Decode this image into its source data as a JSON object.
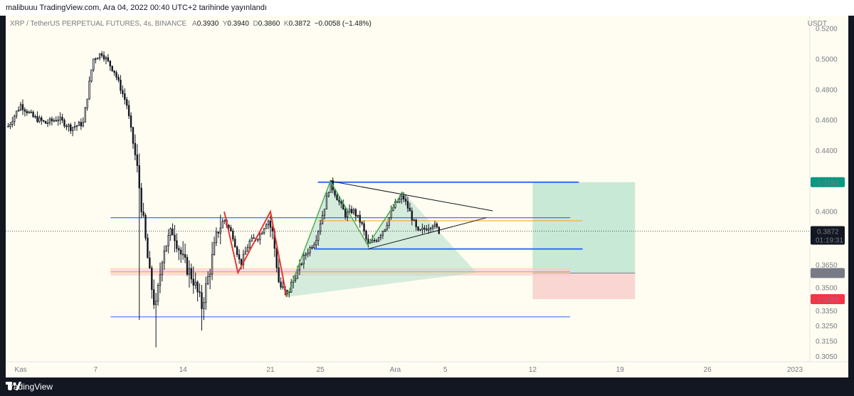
{
  "header": {
    "title": "malibuuu TradingView.com, Ara 04, 2022 00:40 UTC+2 tarihinde yayınlandı"
  },
  "legend": {
    "symbol": "XRP / TetherUS PERPETUAL FUTURES, 4s, BINANCE",
    "o_key": "A",
    "o_val": "0.3930",
    "h_key": "Y",
    "h_val": "0.3940",
    "l_key": "D",
    "l_val": "0.3860",
    "c_key": "K",
    "c_val": "0.3872",
    "change": "−0.0058 (−1.48%)"
  },
  "axis": {
    "unit": "USDT"
  },
  "footer": {
    "brand": "TradingView"
  },
  "colors": {
    "up": "#131722",
    "down": "#131722",
    "blue_line": "#2962ff",
    "orange_line": "#f7a600",
    "pattern_green": "#4caf50",
    "pattern_red": "#e53935",
    "target_fill": "#b2dfcc",
    "stop_fill": "#f8c8c8",
    "tag_green": "#089981",
    "tag_red": "#f23645",
    "tag_gray": "#787b86"
  },
  "chart_data": {
    "type": "candlestick",
    "ylim": [
      0.3015,
      0.5285
    ],
    "y_ticks": [
      0.52,
      0.5,
      0.48,
      0.46,
      0.44,
      0.4,
      0.365,
      0.35,
      0.335,
      0.325,
      0.315,
      0.305
    ],
    "y_tick_labels": [
      "0.5200",
      "0.5000",
      "0.4800",
      "0.4600",
      "0.4400",
      "0.4000",
      "0.3650",
      "0.3500",
      "0.3350",
      "0.3250",
      "0.3150",
      "0.3050"
    ],
    "x_ticks": [
      {
        "label": "Kas",
        "day": 1
      },
      {
        "label": "7",
        "day": 7
      },
      {
        "label": "14",
        "day": 14
      },
      {
        "label": "21",
        "day": 21
      },
      {
        "label": "25",
        "day": 25
      },
      {
        "label": "Ara",
        "day": 31
      },
      {
        "label": "5",
        "day": 35
      },
      {
        "label": "12",
        "day": 42
      },
      {
        "label": "19",
        "day": 49
      },
      {
        "label": "26",
        "day": 56
      },
      {
        "label": "2023",
        "day": 63
      }
    ],
    "x_range_days": [
      -0.2,
      64.2
    ],
    "current_price": {
      "value": 0.3872,
      "label": "0.3872",
      "countdown": "01:19:31"
    },
    "price_tags": [
      {
        "value": 0.4193,
        "label": "0.4193",
        "color": "#089981"
      },
      {
        "value": 0.3597,
        "label": "0.3597",
        "color": "#787b86"
      },
      {
        "value": 0.3426,
        "label": "0.3426",
        "color": "#f23645"
      }
    ],
    "anchors": [
      {
        "day": 0.0,
        "price": 0.456
      },
      {
        "day": 1.0,
        "price": 0.47
      },
      {
        "day": 2.0,
        "price": 0.462
      },
      {
        "day": 3.0,
        "price": 0.458
      },
      {
        "day": 4.0,
        "price": 0.461
      },
      {
        "day": 5.0,
        "price": 0.455
      },
      {
        "day": 6.0,
        "price": 0.458
      },
      {
        "day": 6.8,
        "price": 0.5
      },
      {
        "day": 7.5,
        "price": 0.504
      },
      {
        "day": 8.5,
        "price": 0.492
      },
      {
        "day": 9.5,
        "price": 0.47
      },
      {
        "day": 10.3,
        "price": 0.43
      },
      {
        "day": 10.8,
        "price": 0.395
      },
      {
        "day": 11.3,
        "price": 0.36
      },
      {
        "day": 11.8,
        "price": 0.335
      },
      {
        "day": 12.4,
        "price": 0.375
      },
      {
        "day": 13.2,
        "price": 0.388
      },
      {
        "day": 14.0,
        "price": 0.368
      },
      {
        "day": 14.8,
        "price": 0.356
      },
      {
        "day": 15.5,
        "price": 0.338
      },
      {
        "day": 16.1,
        "price": 0.36
      },
      {
        "day": 16.8,
        "price": 0.388
      },
      {
        "day": 17.3,
        "price": 0.395
      },
      {
        "day": 18.0,
        "price": 0.384
      },
      {
        "day": 18.6,
        "price": 0.365
      },
      {
        "day": 19.3,
        "price": 0.38
      },
      {
        "day": 20.1,
        "price": 0.384
      },
      {
        "day": 20.8,
        "price": 0.395
      },
      {
        "day": 21.2,
        "price": 0.385
      },
      {
        "day": 21.7,
        "price": 0.352
      },
      {
        "day": 22.3,
        "price": 0.345
      },
      {
        "day": 23.0,
        "price": 0.358
      },
      {
        "day": 23.8,
        "price": 0.372
      },
      {
        "day": 24.6,
        "price": 0.381
      },
      {
        "day": 25.3,
        "price": 0.402
      },
      {
        "day": 25.8,
        "price": 0.419
      },
      {
        "day": 26.4,
        "price": 0.408
      },
      {
        "day": 27.0,
        "price": 0.398
      },
      {
        "day": 27.6,
        "price": 0.401
      },
      {
        "day": 28.3,
        "price": 0.392
      },
      {
        "day": 28.8,
        "price": 0.378
      },
      {
        "day": 29.5,
        "price": 0.382
      },
      {
        "day": 30.2,
        "price": 0.39
      },
      {
        "day": 30.9,
        "price": 0.404
      },
      {
        "day": 31.6,
        "price": 0.41
      },
      {
        "day": 32.2,
        "price": 0.399
      },
      {
        "day": 32.8,
        "price": 0.386
      },
      {
        "day": 33.4,
        "price": 0.389
      },
      {
        "day": 34.0,
        "price": 0.392
      },
      {
        "day": 34.5,
        "price": 0.3872
      }
    ],
    "hlines": [
      {
        "price": 0.4193,
        "day_from": 24.8,
        "day_to": 45.7,
        "color": "#2962ff",
        "width": 1.8
      },
      {
        "price": 0.396,
        "day_from": 8.2,
        "day_to": 45.0,
        "color": "#2962ff",
        "width": 1.2
      },
      {
        "price": 0.394,
        "day_from": 24.8,
        "day_to": 46.0,
        "color": "#f7a600",
        "width": 1.0
      },
      {
        "price": 0.3755,
        "day_from": 24.5,
        "day_to": 46.0,
        "color": "#2962ff",
        "width": 1.8
      },
      {
        "price": 0.3605,
        "day_from": 8.2,
        "day_to": 45.0,
        "color": "#f7a600",
        "width": 1.0
      },
      {
        "price": 0.331,
        "day_from": 8.2,
        "day_to": 45.0,
        "color": "#2962ff",
        "width": 1.0
      }
    ],
    "demand_zone": {
      "day_from": 8.2,
      "day_to": 45.0,
      "top": 0.363,
      "bottom": 0.358
    },
    "red_zigzag": [
      [
        17.3,
        0.4
      ],
      [
        18.4,
        0.36
      ],
      [
        21.0,
        0.4
      ],
      [
        22.3,
        0.344
      ]
    ],
    "green_pattern": [
      [
        22.3,
        0.344
      ],
      [
        25.8,
        0.42
      ],
      [
        28.8,
        0.378
      ],
      [
        31.6,
        0.413
      ]
    ],
    "green_triangle_fill": [
      [
        22.3,
        0.344
      ],
      [
        25.8,
        0.42
      ],
      [
        28.8,
        0.378
      ],
      [
        31.6,
        0.413
      ],
      [
        37.5,
        0.36
      ]
    ],
    "triangle_top": [
      [
        25.8,
        0.42
      ],
      [
        38.8,
        0.4005
      ]
    ],
    "triangle_bottom": [
      [
        28.8,
        0.3755
      ],
      [
        38.3,
        0.396
      ]
    ],
    "position": {
      "day_from": 42.0,
      "day_to": 50.2,
      "entry": 0.3597,
      "target": 0.4193,
      "stop": 0.3426
    }
  }
}
